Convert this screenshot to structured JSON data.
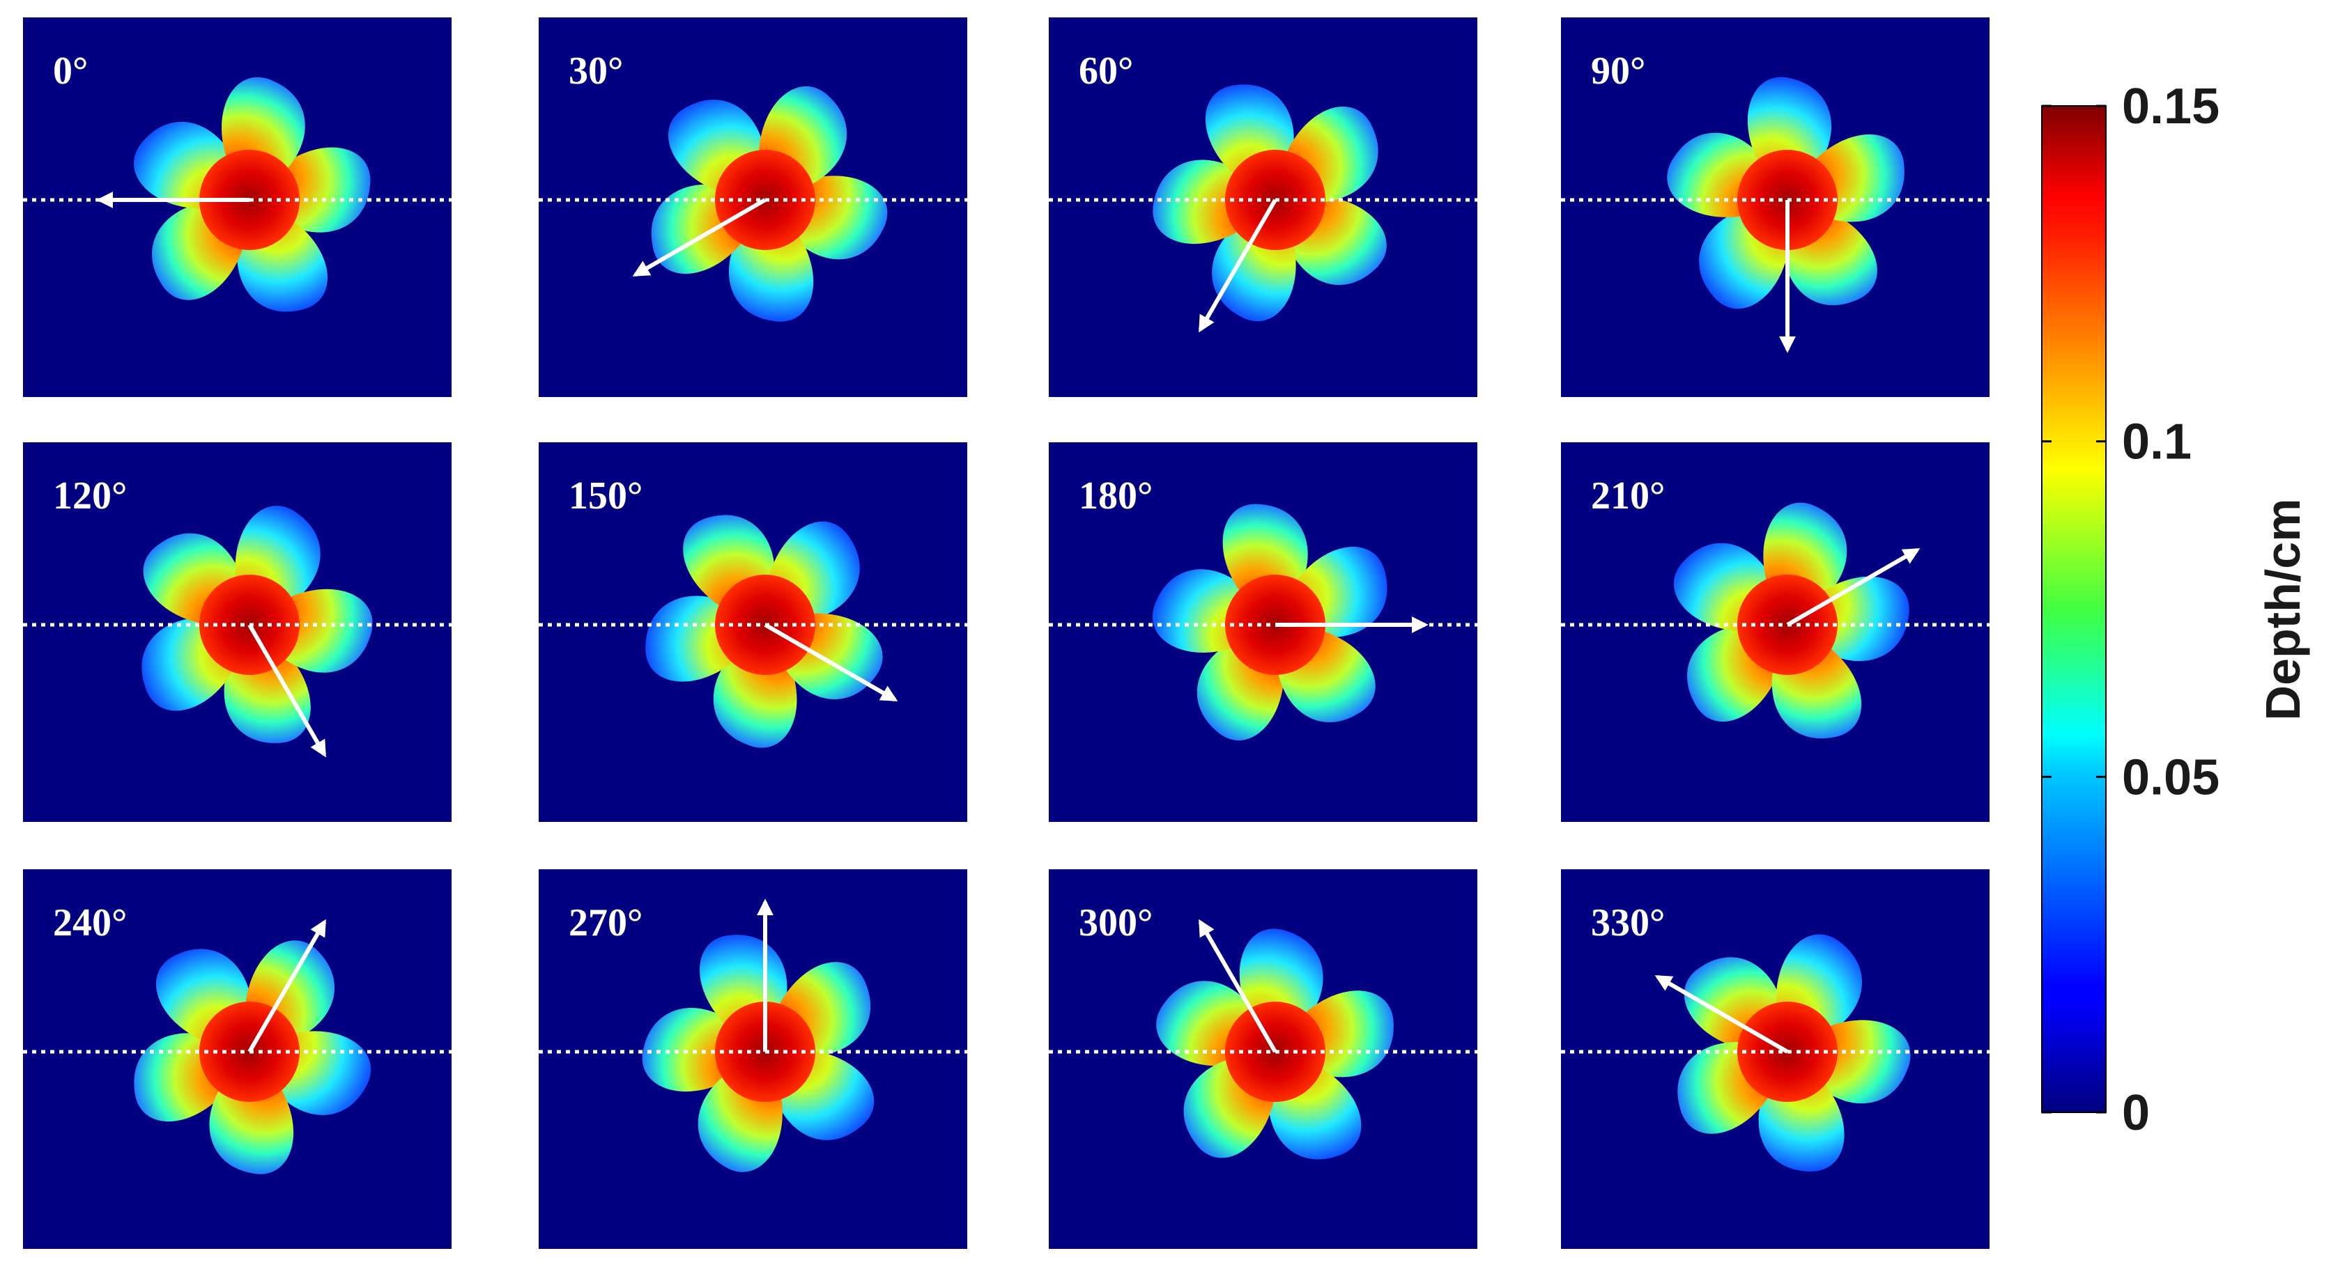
{
  "chart_data": {
    "type": "heatmap",
    "panels": [
      {
        "label": "0°",
        "angle": 0
      },
      {
        "label": "30°",
        "angle": 30
      },
      {
        "label": "60°",
        "angle": 60
      },
      {
        "label": "90°",
        "angle": 90
      },
      {
        "label": "120°",
        "angle": 120
      },
      {
        "label": "150°",
        "angle": 150
      },
      {
        "label": "180°",
        "angle": 180
      },
      {
        "label": "210°",
        "angle": 210
      },
      {
        "label": "240°",
        "angle": 240
      },
      {
        "label": "270°",
        "angle": 270
      },
      {
        "label": "300°",
        "angle": 300
      },
      {
        "label": "330°",
        "angle": 330
      }
    ],
    "colorbar": {
      "label": "Depth/cm",
      "min": 0,
      "max": 0.15,
      "ticks": [
        {
          "value": 0.15,
          "label": "0.15"
        },
        {
          "value": 0.1,
          "label": "0.1"
        },
        {
          "value": 0.05,
          "label": "0.05"
        },
        {
          "value": 0,
          "label": "0"
        }
      ],
      "colormap": "jet"
    },
    "colors": {
      "background": "#000080",
      "arrow": "#ffffff"
    }
  }
}
